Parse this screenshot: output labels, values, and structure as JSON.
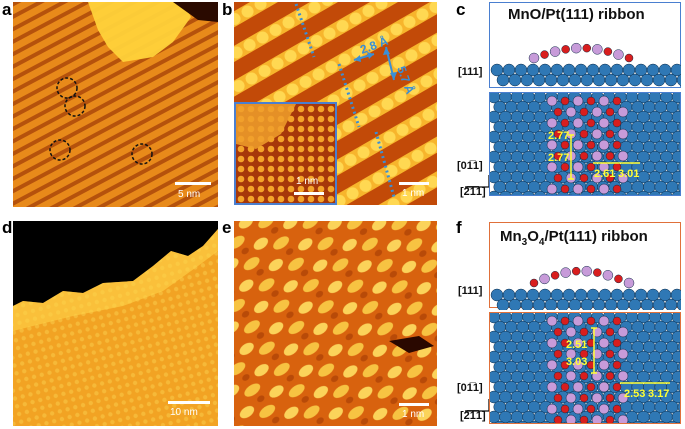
{
  "panels": {
    "a": {
      "label": "a",
      "scale": "5 nm"
    },
    "b": {
      "label": "b",
      "scale": "1 nm",
      "inset_scale": "1 nm",
      "d1": "2.8 Å",
      "d2": "5.7 Å"
    },
    "c": {
      "label": "c",
      "title": "MnO/Pt(111) ribbon",
      "axis_top": "[111]",
      "axis_side": "[01̅1]",
      "axis_bottom": "[2̅1̅1]",
      "measures": [
        "2.77",
        "2.77",
        "2.61",
        "3.01"
      ]
    },
    "d": {
      "label": "d",
      "scale": "10 nm"
    },
    "e": {
      "label": "e",
      "scale": "1 nm"
    },
    "f": {
      "label": "f",
      "title_main": "Mn",
      "title_sub1": "3",
      "title_mid": "O",
      "title_sub2": "4",
      "title_rest": "/Pt(111) ribbon",
      "axis_top": "[111]",
      "axis_side": "[01̅1]",
      "axis_bottom": "[2̅1̅1]",
      "measures": [
        "2.51",
        "3.03",
        "2.53",
        "3.17"
      ]
    }
  },
  "colors": {
    "pt": "#2f78b5",
    "mn": "#c79bd9",
    "o": "#d81e1e",
    "stm_dark": "#5a1a00",
    "stm_mid": "#e06a10",
    "stm_light": "#ffd23a",
    "frame_c": "#4a7fd0",
    "frame_f": "#e0703a",
    "measure": "#ffff33"
  }
}
